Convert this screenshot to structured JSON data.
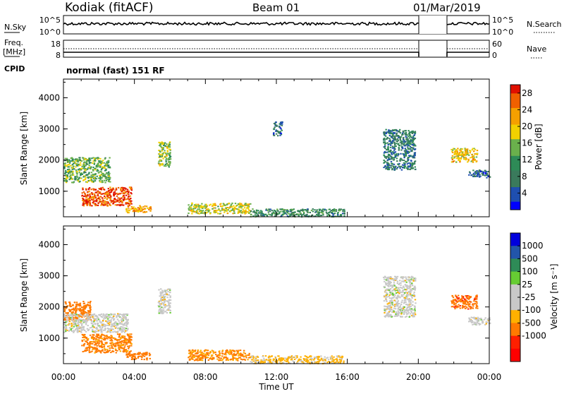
{
  "header": {
    "station": "Kodiak (fitACF)",
    "beam": "Beam 01",
    "date": "01/Mar/2019"
  },
  "top_panels": {
    "nsky_label": "N.Sky",
    "nsky_ticks": [
      "10^5",
      "10^0"
    ],
    "nsearch_label": "N.Search",
    "nsearch_ticks": [
      "10^5",
      "10^0"
    ],
    "freq_label": "Freq.",
    "freq_unit": "[MHz]",
    "freq_ticks": [
      "18",
      "8"
    ],
    "nave_label": "Nave",
    "nave_ticks": [
      "60",
      "0"
    ],
    "cpid_label": "CPID",
    "cpid_text": "normal (fast) 151 RF"
  },
  "colors": {
    "power_scale": [
      "#0000ff",
      "#1f4fb0",
      "#3a7a5c",
      "#2e8b57",
      "#6ab04c",
      "#f2d100",
      "#f5a000",
      "#f06000",
      "#e01000"
    ],
    "velocity_scale": [
      "#ff0000",
      "#ff2000",
      "#ff7a00",
      "#ffb000",
      "#c8c8c8",
      "#c8c8c8",
      "#66cc33",
      "#2e8b57",
      "#2255aa",
      "#0000dd"
    ],
    "ground_scatter": "#c8c8c8"
  },
  "chart_data": [
    {
      "type": "heatmap",
      "panel": "power",
      "xlabel": "",
      "ylabel": "Slant Range [km]",
      "x_ticks": [
        "00:00",
        "04:00",
        "08:00",
        "12:00",
        "16:00",
        "20:00",
        "00:00"
      ],
      "x_range_hours": [
        0,
        24
      ],
      "y_ticks": [
        "1000",
        "2000",
        "3000",
        "4000"
      ],
      "y_range_km": [
        180,
        4600
      ],
      "colorbar_label": "Power [dB]",
      "colorbar_ticks": [
        "4",
        "8",
        "12",
        "16",
        "20",
        "24",
        "28"
      ],
      "colorbar_range": [
        0,
        30
      ],
      "data_gap_hours": [
        20.0,
        21.6
      ],
      "echo_regions": [
        {
          "t": [
            0.0,
            2.6
          ],
          "r": [
            1300,
            2100
          ],
          "value": 14
        },
        {
          "t": [
            1.0,
            3.8
          ],
          "r": [
            550,
            1150
          ],
          "value": 27
        },
        {
          "t": [
            3.5,
            4.9
          ],
          "r": [
            330,
            560
          ],
          "value": 22
        },
        {
          "t": [
            5.3,
            6.0
          ],
          "r": [
            1800,
            2600
          ],
          "value": 16
        },
        {
          "t": [
            7.0,
            10.5
          ],
          "r": [
            300,
            640
          ],
          "value": 18
        },
        {
          "t": [
            10.5,
            15.8
          ],
          "r": [
            200,
            450
          ],
          "value": 10
        },
        {
          "t": [
            11.8,
            12.3
          ],
          "r": [
            2800,
            3250
          ],
          "value": 6
        },
        {
          "t": [
            18.0,
            19.8
          ],
          "r": [
            1700,
            3000
          ],
          "value": 8
        },
        {
          "t": [
            21.8,
            23.3
          ],
          "r": [
            1950,
            2400
          ],
          "value": 20
        },
        {
          "t": [
            22.8,
            24.0
          ],
          "r": [
            1450,
            1700
          ],
          "value": 5
        }
      ]
    },
    {
      "type": "heatmap",
      "panel": "velocity",
      "xlabel": "Time UT",
      "ylabel": "Slant Range [km]",
      "x_ticks": [
        "00:00",
        "04:00",
        "08:00",
        "12:00",
        "16:00",
        "20:00",
        "00:00"
      ],
      "x_range_hours": [
        0,
        24
      ],
      "y_ticks": [
        "1000",
        "2000",
        "3000",
        "4000"
      ],
      "y_range_km": [
        180,
        4600
      ],
      "colorbar_label": "Velocity [m s⁻¹]",
      "colorbar_ticks": [
        "-1000",
        "-500",
        "-100",
        "-25",
        "25",
        "100",
        "500",
        "1000"
      ],
      "data_gap_hours": [
        20.0,
        21.6
      ],
      "echo_regions": [
        {
          "t": [
            0.0,
            1.5
          ],
          "r": [
            1600,
            2200
          ],
          "value": -300
        },
        {
          "t": [
            0.0,
            3.6
          ],
          "r": [
            1200,
            1800
          ],
          "value": 0
        },
        {
          "t": [
            1.0,
            3.8
          ],
          "r": [
            550,
            1150
          ],
          "value": -150
        },
        {
          "t": [
            3.5,
            4.9
          ],
          "r": [
            330,
            560
          ],
          "value": -200
        },
        {
          "t": [
            5.3,
            6.0
          ],
          "r": [
            1800,
            2600
          ],
          "value": 0
        },
        {
          "t": [
            7.0,
            10.5
          ],
          "r": [
            300,
            640
          ],
          "value": -120
        },
        {
          "t": [
            10.5,
            15.8
          ],
          "r": [
            200,
            450
          ],
          "value": -40
        },
        {
          "t": [
            18.0,
            19.8
          ],
          "r": [
            1700,
            3000
          ],
          "value": 0
        },
        {
          "t": [
            21.8,
            23.3
          ],
          "r": [
            1950,
            2400
          ],
          "value": -400
        },
        {
          "t": [
            22.8,
            24.0
          ],
          "r": [
            1450,
            1700
          ],
          "value": 0
        }
      ]
    }
  ]
}
